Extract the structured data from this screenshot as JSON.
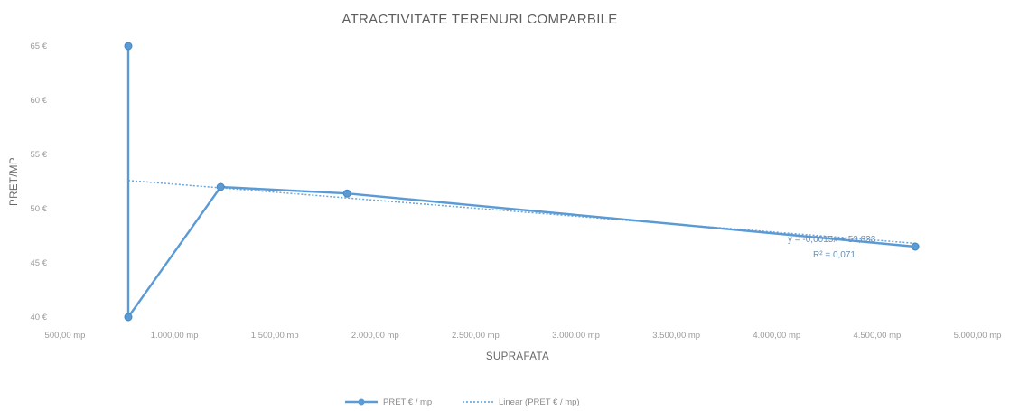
{
  "chart_data": {
    "type": "scatter",
    "title": "ATRACTIVITATE TERENURI COMPARBILE",
    "xlabel": "SUPRAFATA",
    "ylabel": "PRET/MP",
    "xlim": [
      500,
      5000
    ],
    "ylim": [
      40,
      65
    ],
    "x_ticks": [
      500,
      1000,
      1500,
      2000,
      2500,
      3000,
      3500,
      4000,
      4500,
      5000
    ],
    "x_tick_labels": [
      "500,00 mp",
      "1.000,00 mp",
      "1.500,00 mp",
      "2.000,00 mp",
      "2.500,00 mp",
      "3.000,00 mp",
      "3.500,00 mp",
      "4.000,00 mp",
      "4.500,00 mp",
      "5.000,00 mp"
    ],
    "y_ticks": [
      40,
      45,
      50,
      55,
      60,
      65
    ],
    "y_tick_labels": [
      "40 €",
      "45 €",
      "50 €",
      "55 €",
      "60 €",
      "65 €"
    ],
    "grid": false,
    "legend_position": "bottom",
    "series": [
      {
        "name": "PRET   € / mp",
        "style": "solid-line-markers",
        "color": "#5b9bd5",
        "x": [
          770,
          770,
          1230,
          1860,
          4690
        ],
        "y": [
          65,
          40,
          52,
          51.4,
          46.5
        ]
      },
      {
        "name": "Linear (PRET   € / mp)",
        "style": "dotted-trendline",
        "color": "#5b9bd5",
        "x": [
          770,
          4690
        ],
        "y": [
          52.6,
          46.8
        ]
      }
    ],
    "annotations": [
      "y = -0,0015x + 53,833",
      "R² = 0,071"
    ]
  }
}
